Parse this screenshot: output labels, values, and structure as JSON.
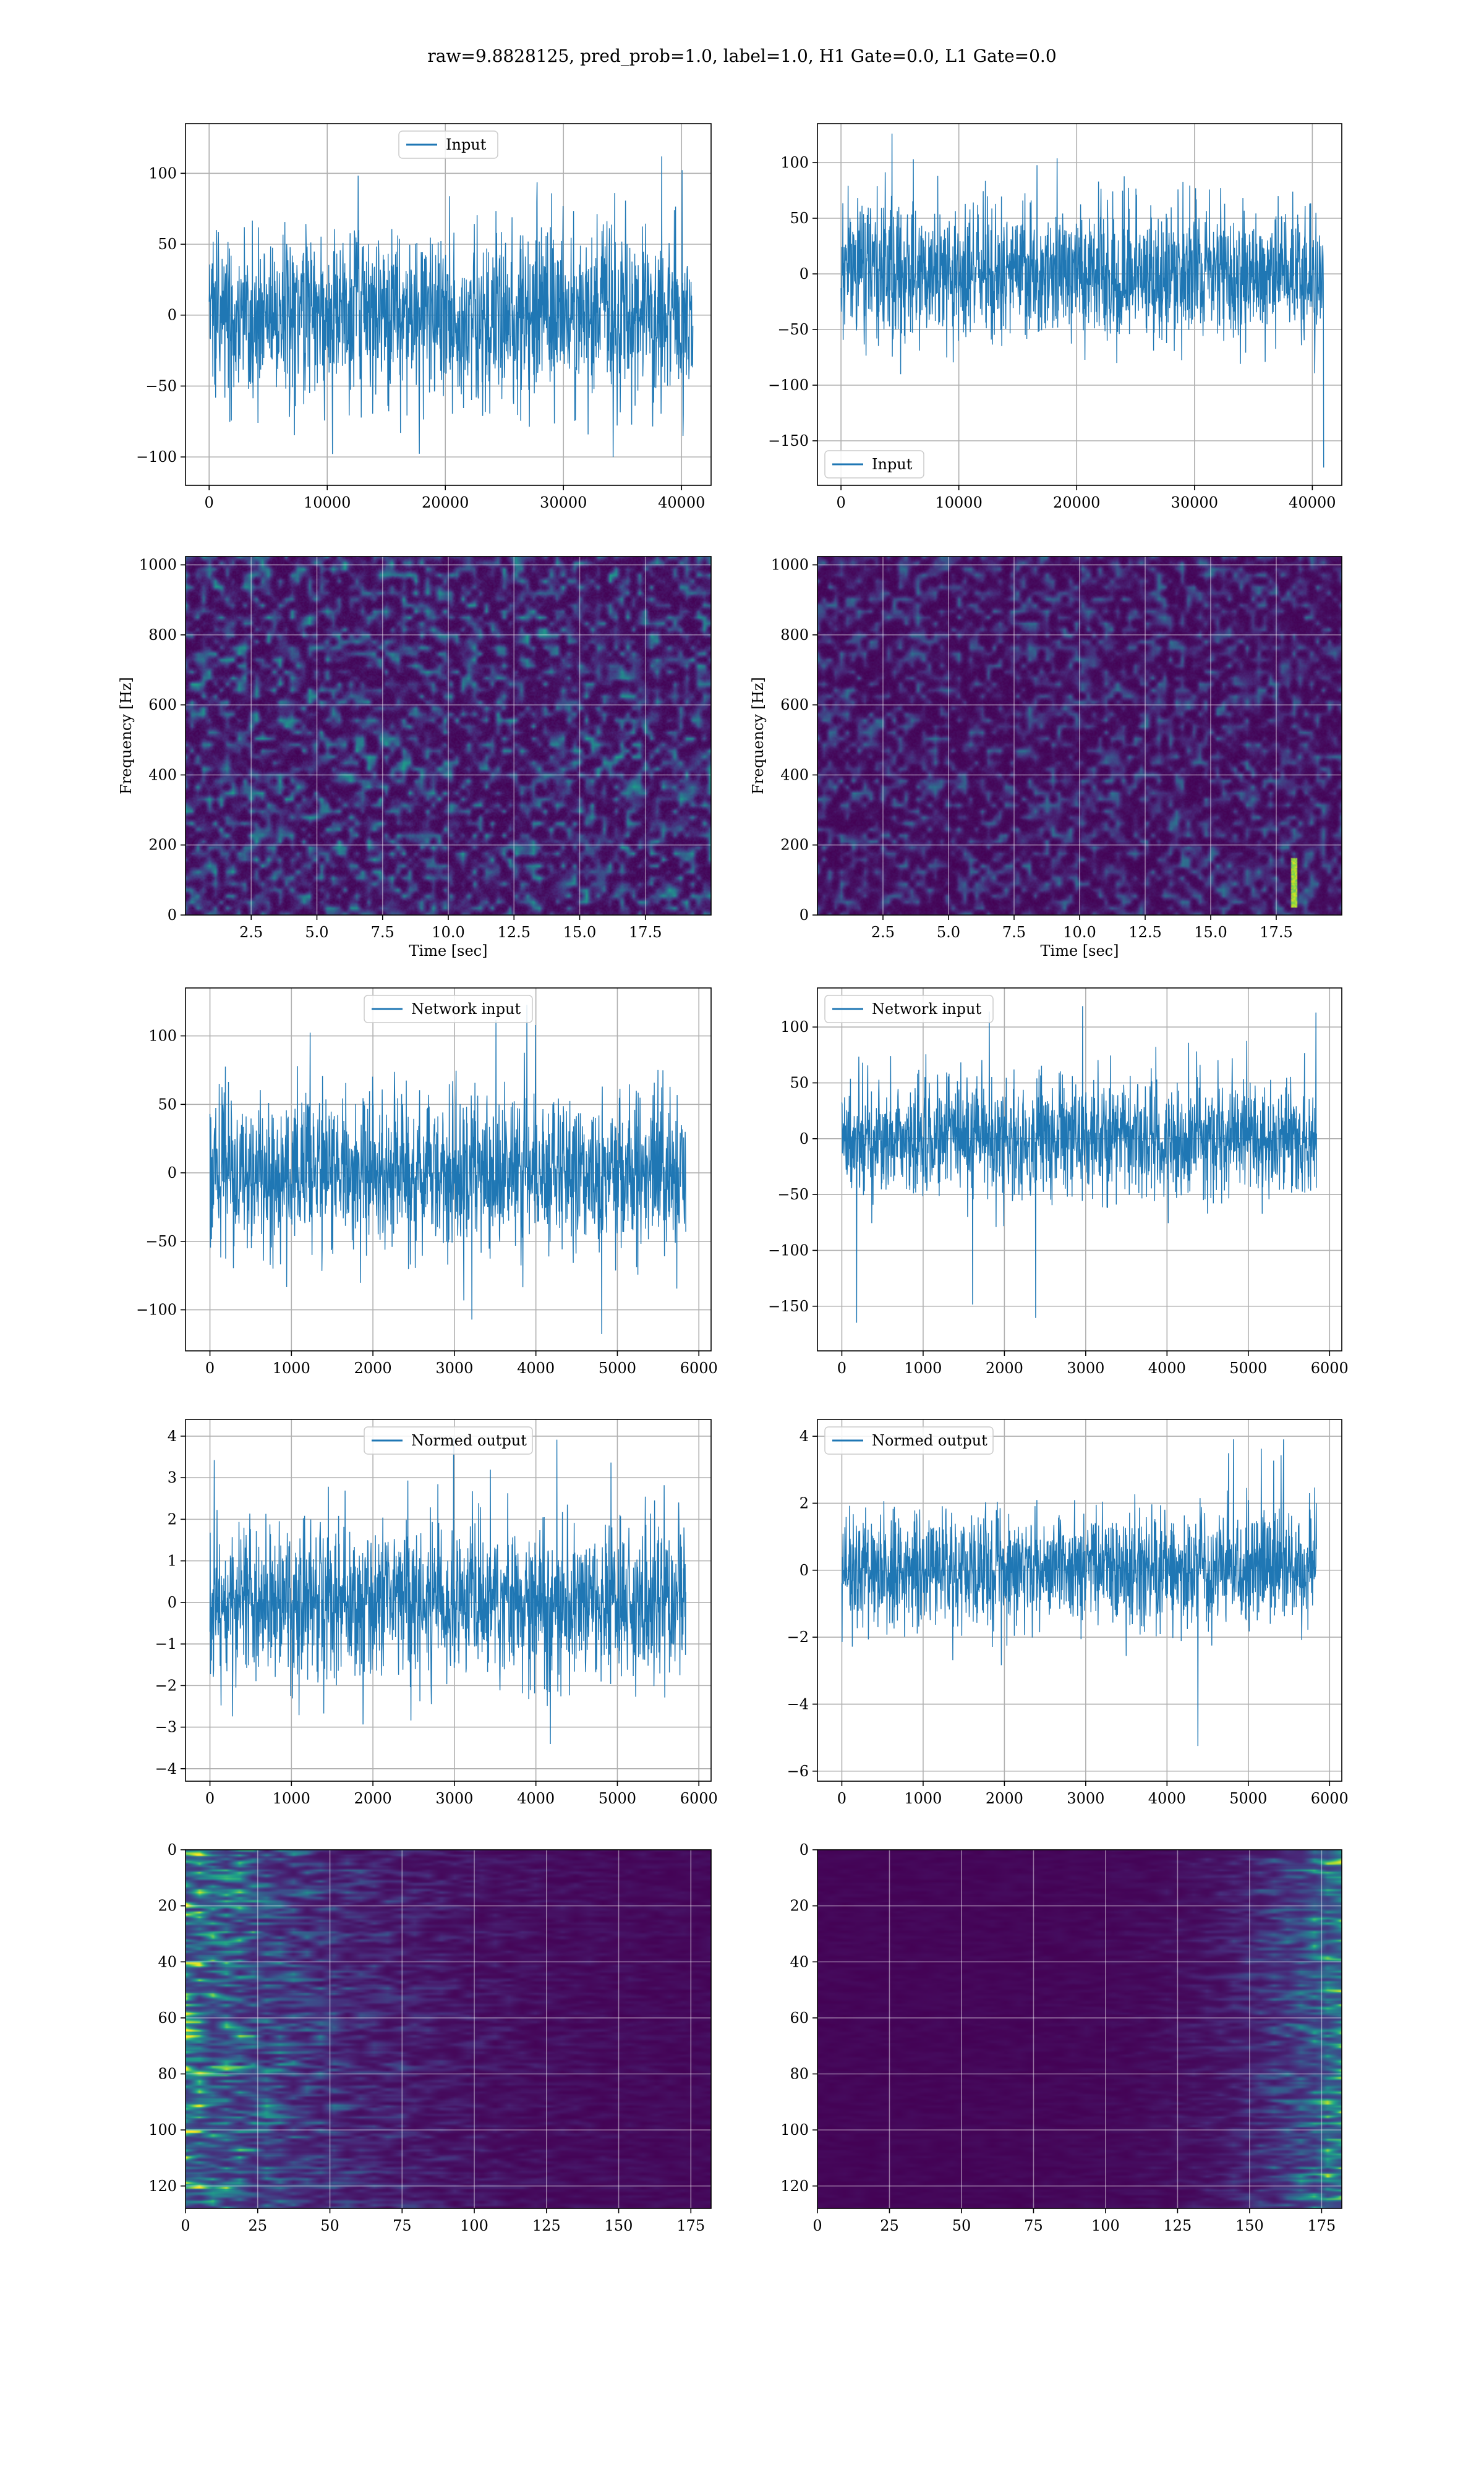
{
  "figure": {
    "suptitle": "raw=9.8828125, pred_prob=1.0, label=1.0, H1 Gate=0.0, L1 Gate=0.0"
  },
  "colors": {
    "line": "#1f77b4",
    "grid": "#b0b0b0",
    "viridis_dark": "#440154",
    "viridis_mid": "#21918c",
    "viridis_bright": "#fde725"
  },
  "chart_data": [
    {
      "id": "input-h1",
      "type": "line",
      "row": 0,
      "col": 0,
      "legend": "Input",
      "legend_loc": "upper center",
      "xlim": [
        -2000,
        42500
      ],
      "ylim": [
        -120,
        135
      ],
      "xticks": [
        0,
        10000,
        20000,
        30000,
        40000
      ],
      "xtick_labels": [
        "0",
        "10000",
        "20000",
        "30000",
        "40000"
      ],
      "yticks": [
        -100,
        -50,
        0,
        50,
        100
      ],
      "ytick_labels": [
        "−100",
        "−50",
        "0",
        "50",
        "100"
      ],
      "x_range": [
        0,
        40960
      ],
      "noise_sigma": 30,
      "envelope": [
        -100,
        120
      ],
      "xlabel": "",
      "ylabel": ""
    },
    {
      "id": "input-l1",
      "type": "line",
      "row": 0,
      "col": 1,
      "legend": "Input",
      "legend_loc": "lower left",
      "xlim": [
        -2000,
        42500
      ],
      "ylim": [
        -190,
        135
      ],
      "xticks": [
        0,
        10000,
        20000,
        30000,
        40000
      ],
      "xtick_labels": [
        "0",
        "10000",
        "20000",
        "30000",
        "40000"
      ],
      "yticks": [
        -150,
        -100,
        -50,
        0,
        50,
        100
      ],
      "ytick_labels": [
        "−150",
        "−100",
        "−50",
        "0",
        "50",
        "100"
      ],
      "x_range": [
        0,
        40960
      ],
      "noise_sigma": 30,
      "envelope": [
        -175,
        128
      ],
      "xlabel": "",
      "ylabel": ""
    },
    {
      "id": "spec-h1",
      "type": "heatmap",
      "row": 1,
      "col": 0,
      "xlim": [
        0,
        20
      ],
      "ylim": [
        0,
        1024
      ],
      "xticks": [
        2.5,
        5.0,
        7.5,
        10.0,
        12.5,
        15.0,
        17.5
      ],
      "xtick_labels": [
        "2.5",
        "5.0",
        "7.5",
        "10.0",
        "12.5",
        "15.0",
        "17.5"
      ],
      "yticks": [
        0,
        200,
        400,
        600,
        800,
        1000
      ],
      "ytick_labels": [
        "0",
        "200",
        "400",
        "600",
        "800",
        "1000"
      ],
      "xlabel": "Time [sec]",
      "ylabel": "Frequency [Hz]",
      "colormap": "viridis",
      "hotspot": null
    },
    {
      "id": "spec-l1",
      "type": "heatmap",
      "row": 1,
      "col": 1,
      "xlim": [
        0,
        20
      ],
      "ylim": [
        0,
        1024
      ],
      "xticks": [
        2.5,
        5.0,
        7.5,
        10.0,
        12.5,
        15.0,
        17.5
      ],
      "xtick_labels": [
        "2.5",
        "5.0",
        "7.5",
        "10.0",
        "12.5",
        "15.0",
        "17.5"
      ],
      "yticks": [
        0,
        200,
        400,
        600,
        800,
        1000
      ],
      "ytick_labels": [
        "0",
        "200",
        "400",
        "600",
        "800",
        "1000"
      ],
      "xlabel": "Time [sec]",
      "ylabel": "Frequency [Hz]",
      "colormap": "viridis",
      "hotspot": {
        "x": 18.2,
        "y_from": 20,
        "y_to": 160
      }
    },
    {
      "id": "network-input-h1",
      "type": "line",
      "row": 2,
      "col": 0,
      "legend": "Network input",
      "legend_loc": "upper center",
      "xlim": [
        -300,
        6150
      ],
      "ylim": [
        -130,
        135
      ],
      "xticks": [
        0,
        1000,
        2000,
        3000,
        4000,
        5000,
        6000
      ],
      "xtick_labels": [
        "0",
        "1000",
        "2000",
        "3000",
        "4000",
        "5000",
        "6000"
      ],
      "yticks": [
        -100,
        -50,
        0,
        50,
        100
      ],
      "ytick_labels": [
        "−100",
        "−50",
        "0",
        "50",
        "100"
      ],
      "x_range": [
        0,
        5840
      ],
      "noise_sigma": 28,
      "envelope": [
        -120,
        125
      ],
      "xlabel": "",
      "ylabel": ""
    },
    {
      "id": "network-input-l1",
      "type": "line",
      "row": 2,
      "col": 1,
      "legend": "Network input",
      "legend_loc": "upper left",
      "xlim": [
        -300,
        6150
      ],
      "ylim": [
        -190,
        135
      ],
      "xticks": [
        0,
        1000,
        2000,
        3000,
        4000,
        5000,
        6000
      ],
      "xtick_labels": [
        "0",
        "1000",
        "2000",
        "3000",
        "4000",
        "5000",
        "6000"
      ],
      "yticks": [
        -150,
        -100,
        -50,
        0,
        50,
        100
      ],
      "ytick_labels": [
        "−150",
        "−100",
        "−50",
        "0",
        "50",
        "100"
      ],
      "x_range": [
        0,
        5840
      ],
      "noise_sigma": 26,
      "envelope": [
        -175,
        130
      ],
      "xlabel": "",
      "ylabel": ""
    },
    {
      "id": "normed-output-h1",
      "type": "line",
      "row": 3,
      "col": 0,
      "legend": "Normed output",
      "legend_loc": "upper center",
      "xlim": [
        -300,
        6150
      ],
      "ylim": [
        -4.3,
        4.4
      ],
      "xticks": [
        0,
        1000,
        2000,
        3000,
        4000,
        5000,
        6000
      ],
      "xtick_labels": [
        "0",
        "1000",
        "2000",
        "3000",
        "4000",
        "5000",
        "6000"
      ],
      "yticks": [
        -4,
        -3,
        -2,
        -1,
        0,
        1,
        2,
        3,
        4
      ],
      "ytick_labels": [
        "−4",
        "−3",
        "−2",
        "−1",
        "0",
        "1",
        "2",
        "3",
        "4"
      ],
      "x_range": [
        0,
        5840
      ],
      "noise_sigma": 0.95,
      "envelope": [
        -3.7,
        4.0
      ],
      "xlabel": "",
      "ylabel": ""
    },
    {
      "id": "normed-output-l1",
      "type": "line",
      "row": 3,
      "col": 1,
      "legend": "Normed output",
      "legend_loc": "upper left",
      "xlim": [
        -300,
        6150
      ],
      "ylim": [
        -6.3,
        4.5
      ],
      "xticks": [
        0,
        1000,
        2000,
        3000,
        4000,
        5000,
        6000
      ],
      "xtick_labels": [
        "0",
        "1000",
        "2000",
        "3000",
        "4000",
        "5000",
        "6000"
      ],
      "yticks": [
        -6,
        -4,
        -2,
        0,
        2,
        4
      ],
      "ytick_labels": [
        "−6",
        "−4",
        "−2",
        "0",
        "2",
        "4"
      ],
      "x_range": [
        0,
        5840
      ],
      "noise_sigma": 0.85,
      "envelope": [
        -5.7,
        4.1
      ],
      "xlabel": "",
      "ylabel": ""
    },
    {
      "id": "feature-map-h1",
      "type": "heatmap",
      "row": 4,
      "col": 0,
      "xlim": [
        0,
        182
      ],
      "ylim": [
        128,
        0
      ],
      "xticks": [
        0,
        25,
        50,
        75,
        100,
        125,
        150,
        175
      ],
      "xtick_labels": [
        "0",
        "25",
        "50",
        "75",
        "100",
        "125",
        "150",
        "175"
      ],
      "yticks": [
        0,
        20,
        40,
        60,
        80,
        100,
        120
      ],
      "ytick_labels": [
        "0",
        "20",
        "40",
        "60",
        "80",
        "100",
        "120"
      ],
      "xlabel": "",
      "ylabel": "",
      "colormap": "viridis",
      "bright_side": "left"
    },
    {
      "id": "feature-map-l1",
      "type": "heatmap",
      "row": 4,
      "col": 1,
      "xlim": [
        0,
        182
      ],
      "ylim": [
        128,
        0
      ],
      "xticks": [
        0,
        25,
        50,
        75,
        100,
        125,
        150,
        175
      ],
      "xtick_labels": [
        "0",
        "25",
        "50",
        "75",
        "100",
        "125",
        "150",
        "175"
      ],
      "yticks": [
        0,
        20,
        40,
        60,
        80,
        100,
        120
      ],
      "ytick_labels": [
        "0",
        "20",
        "40",
        "60",
        "80",
        "100",
        "120"
      ],
      "xlabel": "",
      "ylabel": "",
      "colormap": "viridis",
      "bright_side": "right"
    }
  ]
}
